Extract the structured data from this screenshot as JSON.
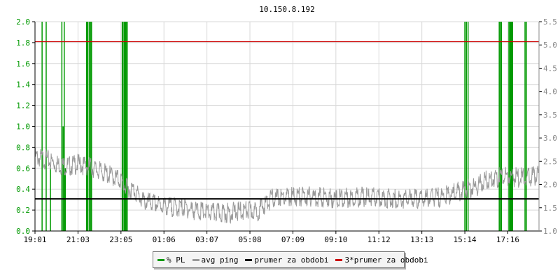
{
  "chart_data": {
    "type": "line",
    "title": "10.150.8.192",
    "x_tick_labels": [
      "19:01",
      "21:03",
      "23:05",
      "01:06",
      "03:07",
      "05:08",
      "07:09",
      "09:10",
      "11:12",
      "13:13",
      "15:14",
      "17:16"
    ],
    "x_tick_positions_hours": [
      0,
      2,
      4,
      6,
      8,
      10,
      12,
      14,
      16,
      18,
      20,
      22
    ],
    "x_range_hours": [
      0,
      23.45
    ],
    "y_left": {
      "ylim": [
        0,
        2.0
      ],
      "ticks": [
        "0.0",
        "0.2",
        "0.4",
        "0.6",
        "0.8",
        "1.0",
        "1.2",
        "1.4",
        "1.6",
        "1.8",
        "2.0"
      ],
      "label_color": "#009900"
    },
    "y_right": {
      "ylim": [
        1.0,
        5.5
      ],
      "ticks": [
        "1.0",
        "1.5",
        "2.0",
        "2.5",
        "3.0",
        "3.5",
        "4.0",
        "4.5",
        "5.0",
        "5.5"
      ]
    },
    "grid": true,
    "series": [
      {
        "name": "% PL",
        "color": "#009900",
        "type": "spikes",
        "axis": "left",
        "x_hours": [
          0.33,
          0.52,
          0.72,
          1.25,
          1.27,
          1.33,
          1.36,
          1.41,
          2.4,
          2.45,
          2.52,
          2.58,
          2.63,
          4.06,
          4.1,
          4.16,
          4.2,
          4.24,
          4.29,
          20.0,
          20.07,
          20.15,
          21.6,
          21.66,
          21.7,
          22.05,
          22.1,
          22.13,
          22.17,
          22.22,
          22.8,
          22.86
        ],
        "values": [
          2.0,
          2.0,
          0.6,
          2.0,
          1.0,
          1.0,
          2.0,
          0.6,
          2.0,
          2.0,
          2.0,
          2.0,
          2.0,
          2.0,
          2.0,
          2.0,
          2.0,
          2.0,
          2.0,
          2.0,
          2.0,
          2.0,
          2.0,
          2.0,
          2.0,
          2.0,
          2.0,
          2.0,
          2.0,
          2.0,
          2.0,
          2.0
        ]
      },
      {
        "name": "avg ping",
        "color": "#999999",
        "type": "line",
        "axis": "right",
        "x_hours": [
          0,
          0.5,
          1,
          1.5,
          2,
          2.5,
          3,
          3.5,
          4,
          4.3,
          4.6,
          5,
          6,
          7,
          8,
          9,
          9.8,
          10.3,
          11,
          12,
          13,
          14,
          15,
          16,
          17,
          18,
          19,
          20,
          20.5,
          21,
          22,
          22.5,
          23.45
        ],
        "values": [
          2.7,
          2.65,
          2.55,
          2.5,
          2.55,
          2.5,
          2.4,
          2.3,
          2.2,
          2.0,
          2.0,
          1.75,
          1.65,
          1.6,
          1.5,
          1.5,
          1.55,
          1.52,
          1.8,
          1.85,
          1.85,
          1.8,
          1.85,
          1.82,
          1.8,
          1.8,
          1.85,
          2.0,
          2.05,
          2.2,
          2.3,
          2.25,
          2.3
        ]
      },
      {
        "name": "prumer za obdobi",
        "color": "#000000",
        "type": "hline",
        "axis": "right",
        "value": 1.69
      },
      {
        "name": "3*prumer za obdobi",
        "color": "#cc0000",
        "type": "hline",
        "axis": "right",
        "value": 5.07
      }
    ],
    "legend": {
      "placement": "bottom-center",
      "items": [
        {
          "label": "% PL",
          "color": "#009900"
        },
        {
          "label": "avg ping",
          "color": "#999999"
        },
        {
          "label": "prumer za obdobi",
          "color": "#000000"
        },
        {
          "label": "3*prumer za obdobi",
          "color": "#cc0000"
        }
      ]
    }
  }
}
